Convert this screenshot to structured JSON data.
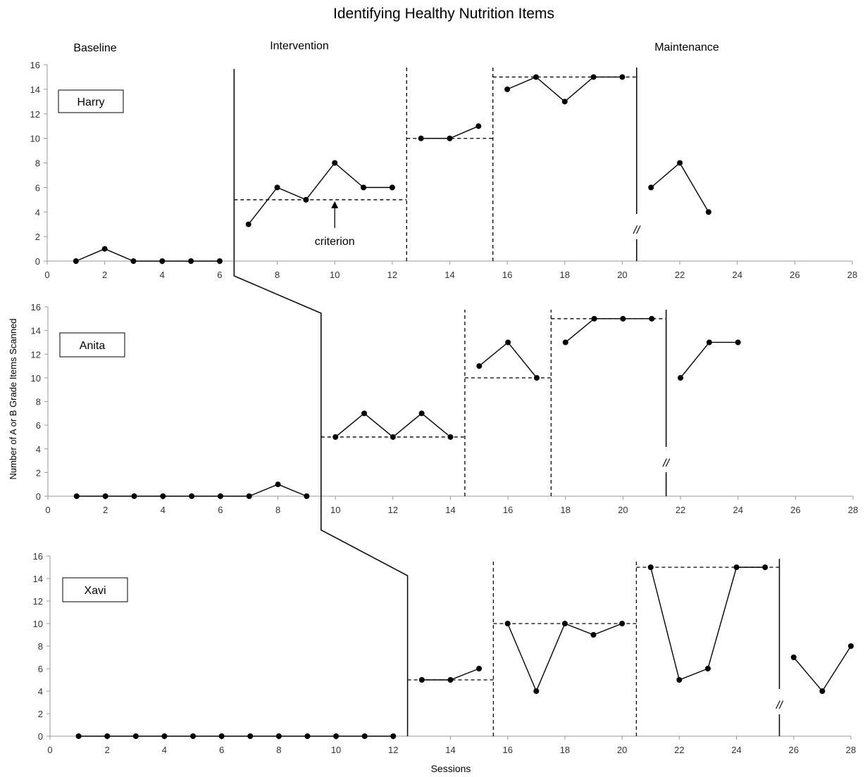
{
  "chart_data": {
    "type": "line",
    "title": "Identifying Healthy Nutrition Items",
    "xlabel": "Sessions",
    "ylabel": "Number of A or B Grade Items Scanned",
    "phase_labels": [
      "Baseline",
      "Intervention",
      "Maintenance"
    ],
    "annotation": "criterion",
    "break_mark": "//",
    "xlim": [
      0,
      28
    ],
    "ylim": [
      0,
      16
    ],
    "xticks": [
      0,
      2,
      4,
      6,
      8,
      10,
      12,
      14,
      16,
      18,
      20,
      22,
      24,
      26,
      28
    ],
    "yticks": [
      0,
      2,
      4,
      6,
      8,
      10,
      12,
      14,
      16
    ],
    "panels": [
      {
        "participant": "Harry",
        "phase_change_solid": [
          6.5,
          20.5
        ],
        "phase_change_dashed": [
          12.5,
          15.5
        ],
        "criteria": [
          {
            "from": 6.5,
            "to": 12.5,
            "value": 5
          },
          {
            "from": 12.5,
            "to": 15.5,
            "value": 10
          },
          {
            "from": 15.5,
            "to": 20.5,
            "value": 15
          }
        ],
        "segments": [
          {
            "x": [
              1,
              2,
              3,
              4,
              5,
              6
            ],
            "y": [
              0,
              1,
              0,
              0,
              0,
              0
            ]
          },
          {
            "x": [
              7,
              8,
              9,
              10,
              11,
              12
            ],
            "y": [
              3,
              6,
              5,
              8,
              6,
              6
            ]
          },
          {
            "x": [
              13,
              14,
              15
            ],
            "y": [
              10,
              10,
              11
            ]
          },
          {
            "x": [
              16,
              17,
              18,
              19,
              20
            ],
            "y": [
              14,
              15,
              13,
              15,
              15
            ]
          },
          {
            "x": [
              21,
              22,
              23
            ],
            "y": [
              6,
              8,
              4
            ]
          }
        ]
      },
      {
        "participant": "Anita",
        "phase_change_solid": [
          9.5,
          21.5
        ],
        "phase_change_dashed": [
          14.5,
          17.5
        ],
        "criteria": [
          {
            "from": 9.5,
            "to": 14.5,
            "value": 5
          },
          {
            "from": 14.5,
            "to": 17.5,
            "value": 10
          },
          {
            "from": 17.5,
            "to": 21.5,
            "value": 15
          }
        ],
        "segments": [
          {
            "x": [
              1,
              2,
              3,
              4,
              5,
              6,
              7,
              8,
              9
            ],
            "y": [
              0,
              0,
              0,
              0,
              0,
              0,
              0,
              1,
              0
            ]
          },
          {
            "x": [
              10,
              11,
              12,
              13,
              14
            ],
            "y": [
              5,
              7,
              5,
              7,
              5
            ]
          },
          {
            "x": [
              15,
              16,
              17
            ],
            "y": [
              11,
              13,
              10
            ]
          },
          {
            "x": [
              18,
              19,
              20,
              21
            ],
            "y": [
              13,
              15,
              15,
              15
            ]
          },
          {
            "x": [
              22,
              23,
              24
            ],
            "y": [
              10,
              13,
              13
            ]
          }
        ]
      },
      {
        "participant": "Xavi",
        "phase_change_solid": [
          12.5,
          25.5
        ],
        "phase_change_dashed": [
          15.5,
          20.5
        ],
        "criteria": [
          {
            "from": 12.5,
            "to": 15.5,
            "value": 5
          },
          {
            "from": 15.5,
            "to": 20.5,
            "value": 10
          },
          {
            "from": 20.5,
            "to": 25.5,
            "value": 15
          }
        ],
        "segments": [
          {
            "x": [
              1,
              2,
              3,
              4,
              5,
              6,
              7,
              8,
              9,
              10,
              11,
              12
            ],
            "y": [
              0,
              0,
              0,
              0,
              0,
              0,
              0,
              0,
              0,
              0,
              0,
              0
            ]
          },
          {
            "x": [
              13,
              14,
              15
            ],
            "y": [
              5,
              5,
              6
            ]
          },
          {
            "x": [
              16,
              17,
              18,
              19,
              20
            ],
            "y": [
              10,
              4,
              10,
              9,
              10
            ]
          },
          {
            "x": [
              21,
              22,
              23,
              24,
              25
            ],
            "y": [
              15,
              5,
              6,
              15,
              15
            ]
          },
          {
            "x": [
              26,
              27,
              28
            ],
            "y": [
              7,
              4,
              8
            ]
          }
        ]
      }
    ]
  }
}
